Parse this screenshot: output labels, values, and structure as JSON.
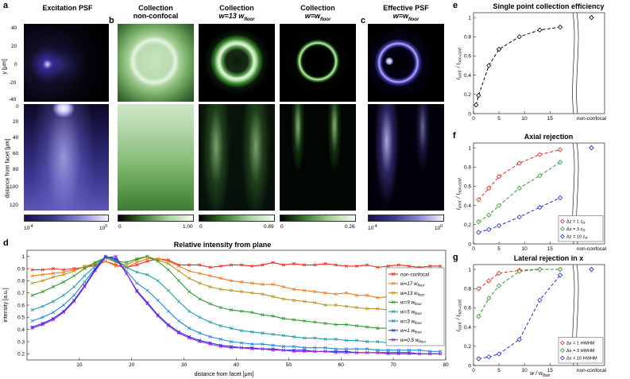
{
  "panel_labels": {
    "a": "a",
    "b": "b",
    "c": "c",
    "d": "d",
    "e": "e",
    "f": "f",
    "g": "g"
  },
  "titles": {
    "excitation": "Excitation PSF",
    "coll_nonconf_1": "Collection",
    "coll_nonconf_2": "non-confocal",
    "coll_w13_1": "Collection",
    "coll_w13_2": "w=13 w",
    "coll_w13_sub": "floor",
    "coll_wfloor_1": "Collection",
    "coll_wfloor_2": "w=w",
    "coll_wfloor_sub": "floor",
    "eff_1": "Effective PSF",
    "eff_2": "w=w",
    "eff_sub": "floor",
    "d": "Relative intensity from plane",
    "e": "Single point collection efficiency",
    "f": "Axial rejection",
    "g": "Lateral rejection in x"
  },
  "axes": {
    "y_um": "y [μm]",
    "distance_facet": "distance from facet [μm]",
    "intensity": "intensity [a.u.]",
    "ratio_main": "I",
    "ratio_conf": "conf.",
    "ratio_sep": " / I",
    "ratio_nonconf": "non-conf.",
    "w_over": "w / w",
    "w_over_sub": "floor",
    "nonconfocal": "non-confocal"
  },
  "ticks": {
    "y_top": [
      "40",
      "20",
      "0",
      "-20",
      "-40"
    ],
    "y_bottom": [
      "0",
      "20",
      "40",
      "60",
      "80",
      "100",
      "120"
    ],
    "d_y": [
      "1",
      "0.9",
      "0.8",
      "0.7",
      "0.6",
      "0.5",
      "0.4",
      "0.3",
      "0.2"
    ],
    "d_x": [
      "10",
      "20",
      "30",
      "40",
      "50",
      "60",
      "70",
      "80"
    ],
    "efg_y": [
      "1",
      "0.8",
      "0.6",
      "0.4",
      "0.2",
      "0"
    ],
    "efg_x": [
      "0",
      "5",
      "10",
      "15"
    ]
  },
  "colorbars": {
    "a_min": "10",
    "a_min_exp": "-4",
    "a_max": "10",
    "a_max_exp": "0",
    "b1_min": "0",
    "b1_max": "1.00",
    "b2_min": "0",
    "b2_max": "0.89",
    "b3_min": "0",
    "b3_max": "0.26",
    "c_min": "10",
    "c_min_exp": "-4",
    "c_max": "10",
    "c_max_exp": "0"
  },
  "legend_d": [
    {
      "label": "non-confocal",
      "sub": "",
      "color": "#e8281e"
    },
    {
      "label": "w=17 w",
      "sub": "floor",
      "color": "#f47a20"
    },
    {
      "label": "w=13 w",
      "sub": "floor",
      "color": "#b8961e"
    },
    {
      "label": "w=9 w",
      "sub": "floor",
      "color": "#2e9a2e"
    },
    {
      "label": "w=5 w",
      "sub": "floor",
      "color": "#1f9aa8"
    },
    {
      "label": "w=3 w",
      "sub": "floor",
      "color": "#1f8ad8"
    },
    {
      "label": "w=1 w",
      "sub": "floor",
      "color": "#1c2fd8"
    },
    {
      "label": "w=0.5 w",
      "sub": "floor",
      "color": "#a020e8"
    }
  ],
  "legend_f": [
    {
      "label": "Δz = 1 z",
      "sub": "R",
      "color": "#e8281e"
    },
    {
      "label": "Δz = 3 z",
      "sub": "R",
      "color": "#2e9a2e"
    },
    {
      "label": "Δz = 10 z",
      "sub": "R",
      "color": "#1c2fd8"
    }
  ],
  "legend_g": [
    {
      "label": "Δx = 1 HWHM",
      "color": "#e8281e"
    },
    {
      "label": "Δx = 3 HWHM",
      "color": "#2e9a2e"
    },
    {
      "label": "Δx = 10 HWHM",
      "color": "#1c2fd8"
    }
  ],
  "chart_data": [
    {
      "id": "d",
      "type": "line",
      "title": "Relative intensity from plane",
      "xlabel": "distance from facet [μm]",
      "ylabel": "intensity [a.u.]",
      "xlim": [
        0,
        80
      ],
      "ylim": [
        0.15,
        1.05
      ],
      "x": [
        1,
        3,
        5,
        7,
        9,
        11,
        13,
        15,
        17,
        19,
        21,
        23,
        25,
        27,
        29,
        31,
        33,
        35,
        37,
        39,
        41,
        43,
        45,
        47,
        49,
        51,
        53,
        55,
        57,
        59,
        61,
        63,
        65,
        67,
        69,
        71,
        73,
        75,
        77,
        79
      ],
      "series": [
        {
          "name": "non-confocal",
          "color": "#e8281e",
          "values": [
            0.89,
            0.89,
            0.9,
            0.89,
            0.9,
            0.91,
            0.93,
            0.96,
            0.93,
            0.91,
            0.93,
            0.96,
            0.98,
            0.97,
            0.93,
            0.93,
            0.93,
            0.91,
            0.92,
            0.93,
            0.93,
            0.92,
            0.93,
            0.95,
            0.93,
            0.94,
            0.93,
            0.93,
            0.94,
            0.93,
            0.92,
            0.92,
            0.93,
            0.91,
            0.92,
            0.93,
            0.92,
            0.91,
            0.92,
            0.92
          ]
        },
        {
          "name": "w=17 w_floor",
          "color": "#f47a20",
          "values": [
            0.84,
            0.85,
            0.86,
            0.87,
            0.89,
            0.91,
            0.92,
            0.96,
            0.92,
            0.91,
            0.95,
            0.98,
            0.98,
            0.96,
            0.92,
            0.88,
            0.86,
            0.84,
            0.82,
            0.8,
            0.79,
            0.78,
            0.77,
            0.77,
            0.75,
            0.73,
            0.72,
            0.71,
            0.7,
            0.69,
            0.7,
            0.68,
            0.68,
            0.66,
            0.67,
            0.66,
            0.66,
            0.65,
            0.64,
            0.64
          ]
        },
        {
          "name": "w=13 w_floor",
          "color": "#b8961e",
          "values": [
            0.78,
            0.8,
            0.83,
            0.85,
            0.88,
            0.92,
            0.94,
            0.99,
            0.95,
            0.93,
            0.97,
            1.0,
            0.97,
            0.94,
            0.88,
            0.82,
            0.78,
            0.75,
            0.73,
            0.72,
            0.71,
            0.7,
            0.69,
            0.67,
            0.65,
            0.64,
            0.63,
            0.62,
            0.6,
            0.6,
            0.59,
            0.58,
            0.57,
            0.57,
            0.56,
            0.55,
            0.55,
            0.54,
            0.53,
            0.52
          ]
        },
        {
          "name": "w=9 w_floor",
          "color": "#2e9a2e",
          "values": [
            0.68,
            0.71,
            0.75,
            0.79,
            0.84,
            0.9,
            0.95,
            0.99,
            0.96,
            0.95,
            0.98,
            1.0,
            0.96,
            0.89,
            0.8,
            0.71,
            0.65,
            0.61,
            0.58,
            0.56,
            0.55,
            0.54,
            0.52,
            0.51,
            0.49,
            0.48,
            0.47,
            0.46,
            0.45,
            0.44,
            0.44,
            0.43,
            0.42,
            0.41,
            0.41,
            0.4,
            0.4,
            0.39,
            0.39,
            0.38
          ]
        },
        {
          "name": "w=5 w_floor",
          "color": "#1f9aa8",
          "values": [
            0.56,
            0.59,
            0.63,
            0.68,
            0.75,
            0.84,
            0.92,
            1.0,
            0.97,
            0.91,
            0.87,
            0.85,
            0.8,
            0.72,
            0.63,
            0.55,
            0.5,
            0.46,
            0.43,
            0.41,
            0.39,
            0.38,
            0.37,
            0.36,
            0.35,
            0.34,
            0.33,
            0.33,
            0.32,
            0.32,
            0.31,
            0.31,
            0.3,
            0.3,
            0.29,
            0.29,
            0.29,
            0.28,
            0.28,
            0.28
          ]
        },
        {
          "name": "w=3 w_floor",
          "color": "#1f8ad8",
          "values": [
            0.47,
            0.5,
            0.54,
            0.6,
            0.68,
            0.79,
            0.9,
            1.0,
            0.97,
            0.88,
            0.78,
            0.72,
            0.64,
            0.55,
            0.47,
            0.41,
            0.37,
            0.34,
            0.32,
            0.3,
            0.29,
            0.28,
            0.28,
            0.27,
            0.26,
            0.26,
            0.25,
            0.25,
            0.25,
            0.24,
            0.24,
            0.24,
            0.24,
            0.23,
            0.23,
            0.23,
            0.23,
            0.23,
            0.22,
            0.22
          ]
        },
        {
          "name": "w=1 w_floor",
          "color": "#1c2fd8",
          "values": [
            0.42,
            0.45,
            0.49,
            0.55,
            0.64,
            0.76,
            0.89,
            1.0,
            0.98,
            0.86,
            0.72,
            0.62,
            0.52,
            0.44,
            0.38,
            0.34,
            0.31,
            0.29,
            0.27,
            0.26,
            0.25,
            0.25,
            0.24,
            0.24,
            0.23,
            0.23,
            0.23,
            0.22,
            0.22,
            0.22,
            0.22,
            0.21,
            0.21,
            0.21,
            0.21,
            0.21,
            0.21,
            0.2,
            0.2,
            0.2
          ]
        },
        {
          "name": "w=0.5 w_floor",
          "color": "#a020e8",
          "values": [
            0.41,
            0.44,
            0.48,
            0.54,
            0.63,
            0.75,
            0.88,
            0.99,
            1.0,
            0.86,
            0.71,
            0.61,
            0.51,
            0.43,
            0.37,
            0.33,
            0.3,
            0.28,
            0.26,
            0.25,
            0.25,
            0.24,
            0.24,
            0.23,
            0.23,
            0.22,
            0.22,
            0.22,
            0.22,
            0.21,
            0.21,
            0.21,
            0.21,
            0.21,
            0.2,
            0.2,
            0.2,
            0.2,
            0.2,
            0.2
          ]
        }
      ]
    },
    {
      "id": "e",
      "type": "line",
      "title": "Single point collection efficiency",
      "xlim": [
        0,
        18
      ],
      "ylim": [
        0,
        1.05
      ],
      "x": [
        0.5,
        1,
        3,
        5,
        9,
        13,
        17
      ],
      "series": [
        {
          "name": "efficiency",
          "color": "#000000",
          "values": [
            0.09,
            0.19,
            0.5,
            0.67,
            0.8,
            0.87,
            0.9
          ]
        }
      ],
      "nonconfocal_value": 1.0
    },
    {
      "id": "f",
      "type": "line",
      "title": "Axial rejection",
      "xlim": [
        0,
        18
      ],
      "ylim": [
        0,
        1.05
      ],
      "x": [
        1,
        3,
        5,
        9,
        13,
        17
      ],
      "series": [
        {
          "name": "Δz = 1 z_R",
          "color": "#e8281e",
          "values": [
            0.46,
            0.58,
            0.7,
            0.84,
            0.93,
            0.98
          ]
        },
        {
          "name": "Δz = 3 z_R",
          "color": "#2e9a2e",
          "values": [
            0.23,
            0.3,
            0.4,
            0.58,
            0.71,
            0.85
          ]
        },
        {
          "name": "Δz = 10 z_R",
          "color": "#1c2fd8",
          "values": [
            0.12,
            0.15,
            0.19,
            0.28,
            0.38,
            0.48
          ]
        }
      ],
      "nonconfocal_value": 1.0
    },
    {
      "id": "g",
      "type": "line",
      "title": "Lateral rejection in x",
      "xlim": [
        0,
        18
      ],
      "ylim": [
        0,
        1.05
      ],
      "x": [
        1,
        3,
        5,
        9,
        13,
        17
      ],
      "series": [
        {
          "name": "Δx = 1 HWHM",
          "color": "#e8281e",
          "values": [
            0.8,
            0.88,
            0.96,
            0.99,
            1.0,
            1.0
          ]
        },
        {
          "name": "Δx = 3 HWHM",
          "color": "#2e9a2e",
          "values": [
            0.51,
            0.7,
            0.83,
            0.98,
            1.0,
            1.0
          ]
        },
        {
          "name": "Δx = 10 HWHM",
          "color": "#1c2fd8",
          "values": [
            0.07,
            0.09,
            0.12,
            0.27,
            0.68,
            0.94
          ]
        }
      ],
      "nonconfocal_value": 1.0
    }
  ]
}
